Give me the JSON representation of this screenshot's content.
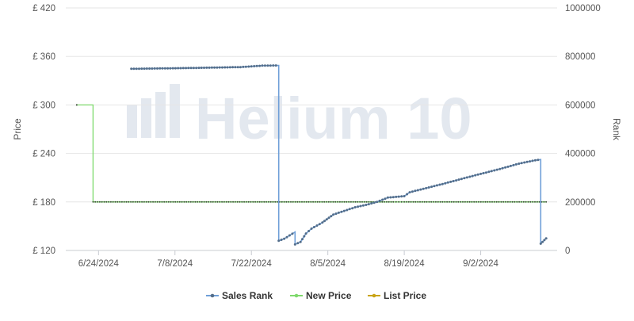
{
  "chart_data": {
    "type": "line",
    "watermark": "Helium 10",
    "xlabel": "",
    "y_left": {
      "label": "Price",
      "ticks": [
        "£ 120",
        "£ 180",
        "£ 240",
        "£ 300",
        "£ 360",
        "£ 420"
      ],
      "range": [
        120,
        420
      ]
    },
    "y_right": {
      "label": "Rank",
      "ticks": [
        "0",
        "200000",
        "400000",
        "600000",
        "800000",
        "1000000"
      ],
      "range": [
        0,
        1000000
      ]
    },
    "x_ticks": [
      "6/24/2024",
      "7/8/2024",
      "7/22/2024",
      "8/5/2024",
      "8/19/2024",
      "9/2/2024"
    ],
    "x_range": [
      "2024-06-18",
      "2024-09-16"
    ],
    "grid": true,
    "legend_position": "bottom-center",
    "series": [
      {
        "name": "Sales Rank",
        "axis": "right",
        "color": "#6f9fd8",
        "marker_color": "#546e8a",
        "points": [
          [
            "2024-06-30",
            749000
          ],
          [
            "2024-07-10",
            752000
          ],
          [
            "2024-07-20",
            756000
          ],
          [
            "2024-07-24",
            762000
          ],
          [
            "2024-07-27",
            763000
          ],
          [
            "2024-07-27",
            40000
          ],
          [
            "2024-07-28",
            48000
          ],
          [
            "2024-07-29",
            62000
          ],
          [
            "2024-07-30",
            76000
          ],
          [
            "2024-07-30",
            25000
          ],
          [
            "2024-07-31",
            35000
          ],
          [
            "2024-08-01",
            70000
          ],
          [
            "2024-08-02",
            90000
          ],
          [
            "2024-08-04",
            115000
          ],
          [
            "2024-08-06",
            148000
          ],
          [
            "2024-08-08",
            163000
          ],
          [
            "2024-08-10",
            178000
          ],
          [
            "2024-08-12",
            188000
          ],
          [
            "2024-08-14",
            200000
          ],
          [
            "2024-08-16",
            218000
          ],
          [
            "2024-08-19",
            224000
          ],
          [
            "2024-08-20",
            240000
          ],
          [
            "2024-08-23",
            257000
          ],
          [
            "2024-08-26",
            274000
          ],
          [
            "2024-08-29",
            292000
          ],
          [
            "2024-09-01",
            310000
          ],
          [
            "2024-09-04",
            327000
          ],
          [
            "2024-09-07",
            345000
          ],
          [
            "2024-09-09",
            358000
          ],
          [
            "2024-09-12",
            372000
          ],
          [
            "2024-09-13",
            375000
          ],
          [
            "2024-09-13",
            28000
          ],
          [
            "2024-09-14",
            50000
          ]
        ]
      },
      {
        "name": "New Price",
        "axis": "left",
        "color": "#7ed96c",
        "points": [
          [
            "2024-06-20",
            300
          ],
          [
            "2024-06-23",
            300
          ],
          [
            "2024-06-23",
            180
          ],
          [
            "2024-07-28",
            180
          ],
          [
            "2024-08-17",
            180
          ],
          [
            "2024-08-19",
            180
          ],
          [
            "2024-09-14",
            180
          ]
        ]
      },
      {
        "name": "List Price",
        "axis": "left",
        "color": "#c9a416",
        "points": [
          [
            "2024-06-20",
            300
          ],
          [
            "2024-06-23",
            300
          ],
          [
            "2024-06-23",
            180
          ],
          [
            "2024-07-28",
            180
          ],
          [
            "2024-08-17",
            180
          ],
          [
            "2024-08-19",
            180
          ],
          [
            "2024-09-14",
            180
          ]
        ]
      }
    ]
  }
}
